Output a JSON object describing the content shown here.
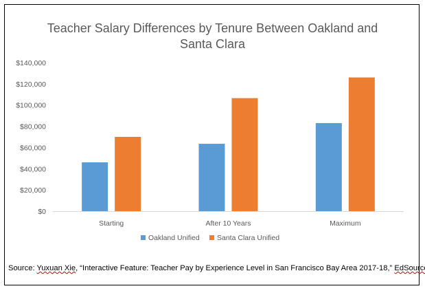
{
  "chart_data": {
    "type": "bar",
    "title_line1": "Teacher Salary Differences by Tenure Between Oakland and",
    "title_line2": "Santa Clara",
    "categories": [
      "Starting",
      "After 10 Years",
      "Maximum"
    ],
    "series": [
      {
        "name": "Oakland Unified",
        "color": "#5b9bd5",
        "values": [
          46000,
          63500,
          83000
        ]
      },
      {
        "name": "Santa Clara Unified",
        "color": "#ed7d31",
        "values": [
          70000,
          106500,
          126000
        ]
      }
    ],
    "ylim": [
      0,
      140000
    ],
    "yticks": [
      "$0",
      "$20,000",
      "$40,000",
      "$60,000",
      "$80,000",
      "$100,000",
      "$120,000",
      "$140,000"
    ],
    "grid": false,
    "legend": "bottom"
  },
  "source": {
    "prefix": "Source: ",
    "author": "Yuxuan Xie",
    "middle": ", “Interactive Feature: Teacher Pay by Experience Level in San Francisco Bay Area 2017-18,” ",
    "outlet": "EdSource"
  }
}
